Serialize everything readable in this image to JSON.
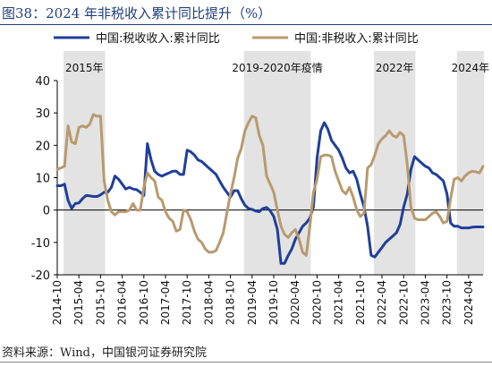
{
  "figure_title": "图38：2024 年非税收入累计同比提升（%）",
  "source_text": "资料来源：Wind，中国银河证券研究院",
  "chart_data": {
    "type": "line",
    "title": "",
    "xlabel": "",
    "ylabel": "",
    "ylim": [
      -20,
      40
    ],
    "yticks": [
      -20,
      -10,
      0,
      10,
      20,
      30,
      40
    ],
    "x_start": "2014-10",
    "x_end": "2024-08",
    "x_ticks": [
      "2014-10",
      "2015-04",
      "2015-10",
      "2016-04",
      "2016-10",
      "2017-04",
      "2017-10",
      "2018-04",
      "2018-10",
      "2019-04",
      "2019-10",
      "2020-04",
      "2020-10",
      "2021-04",
      "2021-10",
      "2022-04",
      "2022-10",
      "2023-04",
      "2023-10",
      "2024-04"
    ],
    "grid": false,
    "legend_position": "top",
    "shaded_periods": [
      {
        "label": "2015年",
        "start": "2014-12",
        "end": "2015-11"
      },
      {
        "label": "2019-2020年疫情",
        "start": "2019-02",
        "end": "2020-08"
      },
      {
        "label": "2022年",
        "start": "2022-02",
        "end": "2023-01"
      },
      {
        "label": "2024年",
        "start": "2024-01",
        "end": "2024-08"
      }
    ],
    "series": [
      {
        "name": "中国:税收收入:累计同比",
        "color": "#1f3f99",
        "points": [
          [
            "2014-10",
            7.5
          ],
          [
            "2014-11",
            7.5
          ],
          [
            "2014-12",
            8
          ],
          [
            "2015-01",
            3
          ],
          [
            "2015-02",
            0.5
          ],
          [
            "2015-03",
            2
          ],
          [
            "2015-04",
            2.2
          ],
          [
            "2015-05",
            3.5
          ],
          [
            "2015-06",
            4.5
          ],
          [
            "2015-07",
            4.4
          ],
          [
            "2015-08",
            4.2
          ],
          [
            "2015-09",
            4.2
          ],
          [
            "2015-10",
            4.7
          ],
          [
            "2015-11",
            5.5
          ],
          [
            "2015-12",
            5.5
          ],
          [
            "2016-01",
            7
          ],
          [
            "2016-02",
            10.5
          ],
          [
            "2016-03",
            9.5
          ],
          [
            "2016-04",
            8
          ],
          [
            "2016-05",
            6.5
          ],
          [
            "2016-06",
            7
          ],
          [
            "2016-07",
            6.5
          ],
          [
            "2016-08",
            6.3
          ],
          [
            "2016-09",
            5.5
          ],
          [
            "2016-10",
            4.5
          ],
          [
            "2016-11",
            20.5
          ],
          [
            "2016-12",
            15.5
          ],
          [
            "2017-01",
            12
          ],
          [
            "2017-02",
            11
          ],
          [
            "2017-03",
            10.5
          ],
          [
            "2017-04",
            11
          ],
          [
            "2017-05",
            11.5
          ],
          [
            "2017-06",
            12
          ],
          [
            "2017-07",
            12
          ],
          [
            "2017-08",
            11
          ],
          [
            "2017-09",
            11
          ],
          [
            "2017-10",
            18.5
          ],
          [
            "2017-11",
            18
          ],
          [
            "2017-12",
            17
          ],
          [
            "2018-01",
            15.5
          ],
          [
            "2018-02",
            15
          ],
          [
            "2018-03",
            14
          ],
          [
            "2018-04",
            13
          ],
          [
            "2018-05",
            12
          ],
          [
            "2018-06",
            11
          ],
          [
            "2018-07",
            9
          ],
          [
            "2018-08",
            7
          ],
          [
            "2018-09",
            5.5
          ],
          [
            "2018-10",
            4
          ],
          [
            "2018-11",
            6
          ],
          [
            "2018-12",
            6
          ],
          [
            "2019-01",
            3.5
          ],
          [
            "2019-02",
            1.5
          ],
          [
            "2019-03",
            0.5
          ],
          [
            "2019-04",
            0.2
          ],
          [
            "2019-05",
            -0.3
          ],
          [
            "2019-06",
            -0.5
          ],
          [
            "2019-07",
            0.5
          ],
          [
            "2019-08",
            0.8
          ],
          [
            "2019-09",
            -0.2
          ],
          [
            "2019-10",
            -2
          ],
          [
            "2019-11",
            -6
          ],
          [
            "2019-12",
            -16.5
          ],
          [
            "2020-01",
            -16.5
          ],
          [
            "2020-02",
            -14
          ],
          [
            "2020-03",
            -12
          ],
          [
            "2020-04",
            -9
          ],
          [
            "2020-05",
            -7
          ],
          [
            "2020-06",
            -5
          ],
          [
            "2020-07",
            -4
          ],
          [
            "2020-08",
            -2.5
          ],
          [
            "2020-09",
            1
          ],
          [
            "2020-10",
            16
          ],
          [
            "2020-11",
            24.5
          ],
          [
            "2020-12",
            27
          ],
          [
            "2021-01",
            25
          ],
          [
            "2021-02",
            21.5
          ],
          [
            "2021-03",
            20
          ],
          [
            "2021-04",
            18.5
          ],
          [
            "2021-05",
            16
          ],
          [
            "2021-06",
            13
          ],
          [
            "2021-07",
            11.5
          ],
          [
            "2021-08",
            12
          ],
          [
            "2021-09",
            9.5
          ],
          [
            "2021-10",
            5
          ],
          [
            "2021-11",
            1
          ],
          [
            "2021-12",
            -5
          ],
          [
            "2022-01",
            -14
          ],
          [
            "2022-02",
            -14.5
          ],
          [
            "2022-03",
            -13
          ],
          [
            "2022-04",
            -11.5
          ],
          [
            "2022-05",
            -10
          ],
          [
            "2022-06",
            -9
          ],
          [
            "2022-07",
            -8
          ],
          [
            "2022-08",
            -7
          ],
          [
            "2022-09",
            -4.5
          ],
          [
            "2022-10",
            1
          ],
          [
            "2022-11",
            5
          ],
          [
            "2022-12",
            12.5
          ],
          [
            "2023-01",
            16.5
          ],
          [
            "2023-02",
            15.5
          ],
          [
            "2023-03",
            14.5
          ],
          [
            "2023-04",
            13.5
          ],
          [
            "2023-05",
            13
          ],
          [
            "2023-06",
            11.5
          ],
          [
            "2023-07",
            11
          ],
          [
            "2023-08",
            10
          ],
          [
            "2023-09",
            9
          ],
          [
            "2023-10",
            5
          ],
          [
            "2023-11",
            -4
          ],
          [
            "2023-12",
            -5
          ],
          [
            "2024-01",
            -5
          ],
          [
            "2024-02",
            -5.5
          ],
          [
            "2024-03",
            -5.5
          ],
          [
            "2024-04",
            -5.5
          ],
          [
            "2024-05",
            -5.3
          ],
          [
            "2024-06",
            -5.2
          ],
          [
            "2024-07",
            -5.2
          ],
          [
            "2024-08",
            -5.2
          ]
        ]
      },
      {
        "name": "中国:非税收入:累计同比",
        "color": "#b89a6e",
        "points": [
          [
            "2014-10",
            12.5
          ],
          [
            "2014-11",
            13
          ],
          [
            "2014-12",
            13.5
          ],
          [
            "2015-01",
            26
          ],
          [
            "2015-02",
            21
          ],
          [
            "2015-03",
            20.5
          ],
          [
            "2015-04",
            25.5
          ],
          [
            "2015-05",
            26
          ],
          [
            "2015-06",
            25.5
          ],
          [
            "2015-07",
            26.5
          ],
          [
            "2015-08",
            29.5
          ],
          [
            "2015-09",
            29
          ],
          [
            "2015-10",
            29
          ],
          [
            "2015-11",
            9
          ],
          [
            "2015-12",
            3
          ],
          [
            "2016-01",
            -0.5
          ],
          [
            "2016-02",
            -1.5
          ],
          [
            "2016-03",
            -0.5
          ],
          [
            "2016-04",
            -0.5
          ],
          [
            "2016-05",
            -0.5
          ],
          [
            "2016-06",
            0
          ],
          [
            "2016-07",
            2
          ],
          [
            "2016-08",
            0
          ],
          [
            "2016-09",
            0
          ],
          [
            "2016-10",
            7
          ],
          [
            "2016-11",
            11.5
          ],
          [
            "2016-12",
            10
          ],
          [
            "2017-01",
            9
          ],
          [
            "2017-02",
            4
          ],
          [
            "2017-03",
            3
          ],
          [
            "2017-04",
            -0.5
          ],
          [
            "2017-05",
            -2.5
          ],
          [
            "2017-06",
            -3.5
          ],
          [
            "2017-07",
            -6.5
          ],
          [
            "2017-08",
            -6
          ],
          [
            "2017-09",
            0
          ],
          [
            "2017-10",
            -0.5
          ],
          [
            "2017-11",
            -3
          ],
          [
            "2017-12",
            -6.5
          ],
          [
            "2018-01",
            -9
          ],
          [
            "2018-02",
            -10
          ],
          [
            "2018-03",
            -12
          ],
          [
            "2018-04",
            -13
          ],
          [
            "2018-05",
            -13
          ],
          [
            "2018-06",
            -12.5
          ],
          [
            "2018-07",
            -10
          ],
          [
            "2018-08",
            -7
          ],
          [
            "2018-09",
            -1
          ],
          [
            "2018-10",
            5
          ],
          [
            "2018-11",
            10
          ],
          [
            "2018-12",
            16
          ],
          [
            "2019-01",
            19
          ],
          [
            "2019-02",
            24.5
          ],
          [
            "2019-03",
            27
          ],
          [
            "2019-04",
            29
          ],
          [
            "2019-05",
            28.5
          ],
          [
            "2019-06",
            23
          ],
          [
            "2019-07",
            20
          ],
          [
            "2019-08",
            10.5
          ],
          [
            "2019-09",
            8
          ],
          [
            "2019-10",
            5.5
          ],
          [
            "2019-11",
            0
          ],
          [
            "2019-12",
            -5
          ],
          [
            "2020-01",
            -7.5
          ],
          [
            "2020-02",
            -8.5
          ],
          [
            "2020-03",
            -7
          ],
          [
            "2020-04",
            -6
          ],
          [
            "2020-05",
            -9
          ],
          [
            "2020-06",
            -13
          ],
          [
            "2020-07",
            -14
          ],
          [
            "2020-08",
            -5
          ],
          [
            "2020-09",
            5.5
          ],
          [
            "2020-10",
            9.5
          ],
          [
            "2020-11",
            16.5
          ],
          [
            "2020-12",
            17
          ],
          [
            "2021-01",
            17
          ],
          [
            "2021-02",
            16.5
          ],
          [
            "2021-03",
            12
          ],
          [
            "2021-04",
            9
          ],
          [
            "2021-05",
            6
          ],
          [
            "2021-06",
            5
          ],
          [
            "2021-07",
            7
          ],
          [
            "2021-08",
            4
          ],
          [
            "2021-09",
            0
          ],
          [
            "2021-10",
            -2
          ],
          [
            "2021-11",
            -1
          ],
          [
            "2021-12",
            13
          ],
          [
            "2022-01",
            14
          ],
          [
            "2022-02",
            17
          ],
          [
            "2022-03",
            20.5
          ],
          [
            "2022-04",
            22
          ],
          [
            "2022-05",
            23
          ],
          [
            "2022-06",
            24.5
          ],
          [
            "2022-07",
            23
          ],
          [
            "2022-08",
            22.5
          ],
          [
            "2022-09",
            24
          ],
          [
            "2022-10",
            23
          ],
          [
            "2022-11",
            14
          ],
          [
            "2022-12",
            1
          ],
          [
            "2023-01",
            -2.5
          ],
          [
            "2023-02",
            -3
          ],
          [
            "2023-03",
            -3
          ],
          [
            "2023-04",
            -3
          ],
          [
            "2023-05",
            -2
          ],
          [
            "2023-06",
            -1
          ],
          [
            "2023-07",
            -0.5
          ],
          [
            "2023-08",
            -2
          ],
          [
            "2023-09",
            -4
          ],
          [
            "2023-10",
            -3.5
          ],
          [
            "2023-11",
            3.5
          ],
          [
            "2023-12",
            9.5
          ],
          [
            "2024-01",
            10
          ],
          [
            "2024-02",
            9
          ],
          [
            "2024-03",
            10.5
          ],
          [
            "2024-04",
            11.5
          ],
          [
            "2024-05",
            12
          ],
          [
            "2024-06",
            11.8
          ],
          [
            "2024-07",
            11.5
          ],
          [
            "2024-08",
            13.5
          ]
        ]
      }
    ]
  }
}
